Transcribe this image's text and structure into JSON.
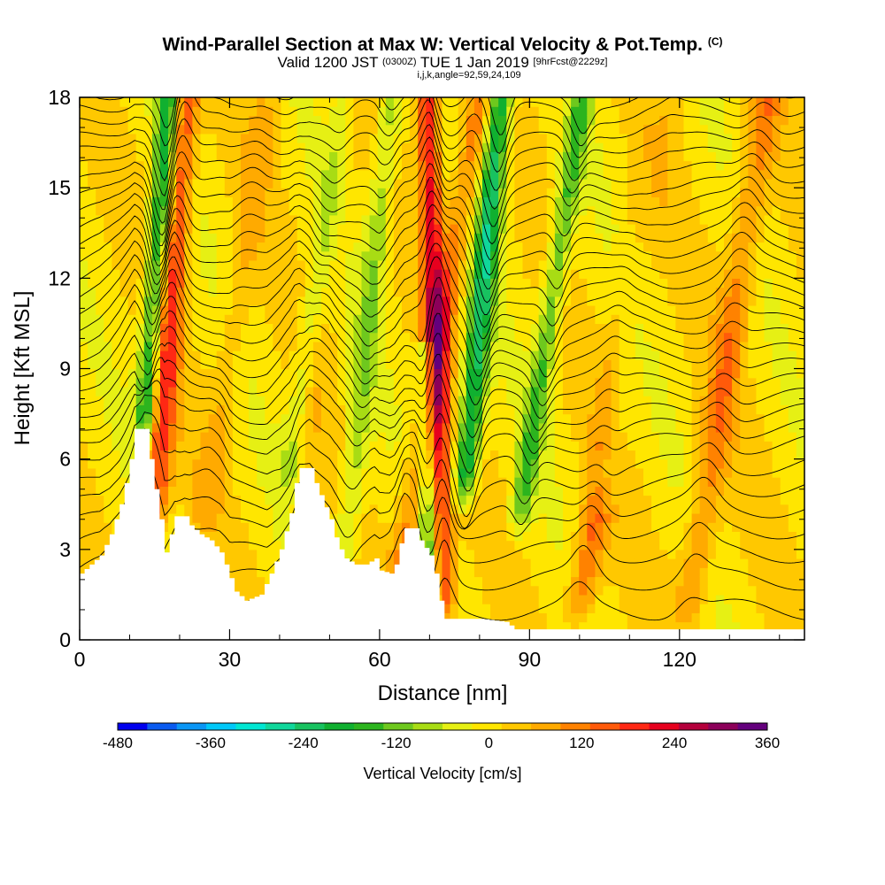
{
  "title": {
    "main": "Wind-Parallel Section at Max W: Vertical Velocity & Pot.Temp.",
    "main_flag": "(C)",
    "valid_prefix": "Valid 1200 JST",
    "valid_utc": "(0300Z)",
    "valid_date": "TUE 1 Jan 2019",
    "forecast": "[9hrFcst@2229z]",
    "indices": "i,j,k,angle=92,59,24,109"
  },
  "chart_data": {
    "type": "heatmap",
    "xlabel": "Distance [nm]",
    "ylabel": "Height [Kft MSL]",
    "xlim": [
      0,
      145
    ],
    "ylim": [
      0,
      18
    ],
    "x_ticks": [
      0,
      30,
      60,
      90,
      120
    ],
    "y_ticks": [
      0,
      3,
      6,
      9,
      12,
      15,
      18
    ],
    "terrain_kft": [
      [
        0,
        2.2
      ],
      [
        2,
        2.5
      ],
      [
        4,
        2.8
      ],
      [
        6,
        3.5
      ],
      [
        8,
        4.5
      ],
      [
        9,
        5.2
      ],
      [
        10,
        6.0
      ],
      [
        11,
        7.0
      ],
      [
        13,
        7.0
      ],
      [
        14,
        6.0
      ],
      [
        15,
        5.0
      ],
      [
        16,
        4.0
      ],
      [
        17,
        2.9
      ],
      [
        18,
        3.5
      ],
      [
        19,
        4.1
      ],
      [
        21,
        4.1
      ],
      [
        22,
        3.8
      ],
      [
        24,
        3.5
      ],
      [
        26,
        3.3
      ],
      [
        28,
        2.9
      ],
      [
        29,
        2.5
      ],
      [
        31,
        1.6
      ],
      [
        33,
        1.3
      ],
      [
        36,
        1.5
      ],
      [
        38,
        2.2
      ],
      [
        40,
        3.0
      ],
      [
        42,
        4.2
      ],
      [
        43,
        5.2
      ],
      [
        44,
        5.7
      ],
      [
        46,
        5.7
      ],
      [
        47,
        5.2
      ],
      [
        48,
        4.8
      ],
      [
        49,
        4.4
      ],
      [
        50,
        4.0
      ],
      [
        51,
        3.4
      ],
      [
        52,
        3.0
      ],
      [
        53,
        2.7
      ],
      [
        55,
        2.5
      ],
      [
        57,
        2.5
      ],
      [
        59,
        2.7
      ],
      [
        60,
        2.3
      ],
      [
        62,
        2.2
      ],
      [
        63,
        2.5
      ],
      [
        64,
        3.2
      ],
      [
        65,
        3.7
      ],
      [
        67,
        3.7
      ],
      [
        68,
        3.3
      ],
      [
        70,
        2.8
      ],
      [
        71,
        2.2
      ],
      [
        72,
        1.3
      ],
      [
        73,
        0.7
      ],
      [
        80,
        0.7
      ],
      [
        85,
        0.6
      ],
      [
        87,
        0.35
      ],
      [
        145,
        0.35
      ]
    ],
    "updrafts": [
      {
        "x_base": 15,
        "tilt": 0.45,
        "halfwidth": 2.6,
        "peak_cms": 190,
        "z_from": 4.0,
        "z_to": 18
      },
      {
        "x_base": 73,
        "tilt": -0.2,
        "halfwidth": 2.2,
        "peak_cms": 220,
        "z_from": 1.0,
        "z_to": 18
      },
      {
        "x_base": 64,
        "tilt": 1.0,
        "halfwidth": 2.8,
        "peak_cms": 120,
        "z_from": 2.0,
        "z_to": 18
      },
      {
        "x_base": 100,
        "tilt": 1.0,
        "halfwidth": 3.0,
        "peak_cms": 140,
        "z_from": 1.0,
        "z_to": 18
      },
      {
        "x_base": 122,
        "tilt": 0.9,
        "halfwidth": 3.2,
        "peak_cms": 110,
        "z_from": 1.0,
        "z_to": 18
      },
      {
        "x_base": 25,
        "tilt": 0.9,
        "halfwidth": 3.0,
        "peak_cms": 55,
        "z_from": 4.0,
        "z_to": 18
      },
      {
        "x_base": 44,
        "tilt": 0.8,
        "halfwidth": 3.0,
        "peak_cms": 60,
        "z_from": 6.0,
        "z_to": 18
      }
    ],
    "downdrafts": [
      {
        "x_base": 13,
        "tilt": 0.45,
        "halfwidth": 2.2,
        "peak_cms": -210,
        "z_from": 7.0,
        "z_to": 18
      },
      {
        "x_base": 77,
        "tilt": 0.55,
        "halfwidth": 2.4,
        "peak_cms": -250,
        "z_from": 5.0,
        "z_to": 18
      },
      {
        "x_base": 70,
        "tilt": -0.1,
        "halfwidth": 2.0,
        "peak_cms": -150,
        "z_from": 1.0,
        "z_to": 9
      },
      {
        "x_base": 88,
        "tilt": 0.9,
        "halfwidth": 2.2,
        "peak_cms": -150,
        "z_from": 4.0,
        "z_to": 18
      },
      {
        "x_base": 105,
        "tilt": 0.9,
        "halfwidth": 2.6,
        "peak_cms": -120,
        "z_from": 5.0,
        "z_to": 18
      },
      {
        "x_base": 42,
        "tilt": 0.9,
        "halfwidth": 2.6,
        "peak_cms": -110,
        "z_from": 5.5,
        "z_to": 18
      },
      {
        "x_base": 53,
        "tilt": 0.6,
        "halfwidth": 2.4,
        "peak_cms": -100,
        "z_from": 2.5,
        "z_to": 18
      }
    ],
    "isentrope_base_kft": [
      1,
      2,
      2.9,
      3.7,
      4.4,
      5.1,
      5.8,
      6.5,
      7.0,
      7.5,
      8.0,
      8.5,
      9.0,
      9.5,
      10.0,
      10.5,
      11.0,
      11.5,
      12.0,
      12.5,
      13.0,
      13.5,
      14.0,
      14.5,
      15.0,
      15.5,
      16.0,
      16.5,
      17.0,
      17.5,
      18.0
    ],
    "colorbar": {
      "title": "Vertical Velocity [cm/s]",
      "levels": [
        -480,
        -440,
        -400,
        -360,
        -320,
        -280,
        -240,
        -200,
        -160,
        -120,
        -80,
        -40,
        0,
        40,
        80,
        120,
        160,
        200,
        240,
        280,
        320,
        360
      ],
      "labeled": [
        "-480",
        "-360",
        "-240",
        "-120",
        "0",
        "120",
        "240",
        "360"
      ],
      "colors": [
        "#0000ee",
        "#0a5bf0",
        "#0a96f5",
        "#00c8f8",
        "#00e6d2",
        "#10d79b",
        "#18c260",
        "#10b030",
        "#2cb41e",
        "#6ec81e",
        "#a8dc14",
        "#e6f014",
        "#ffe600",
        "#ffc800",
        "#ffaa00",
        "#ff8200",
        "#ff5a0a",
        "#ff2814",
        "#e6001e",
        "#b4003c",
        "#8c005a",
        "#64007d"
      ]
    }
  }
}
